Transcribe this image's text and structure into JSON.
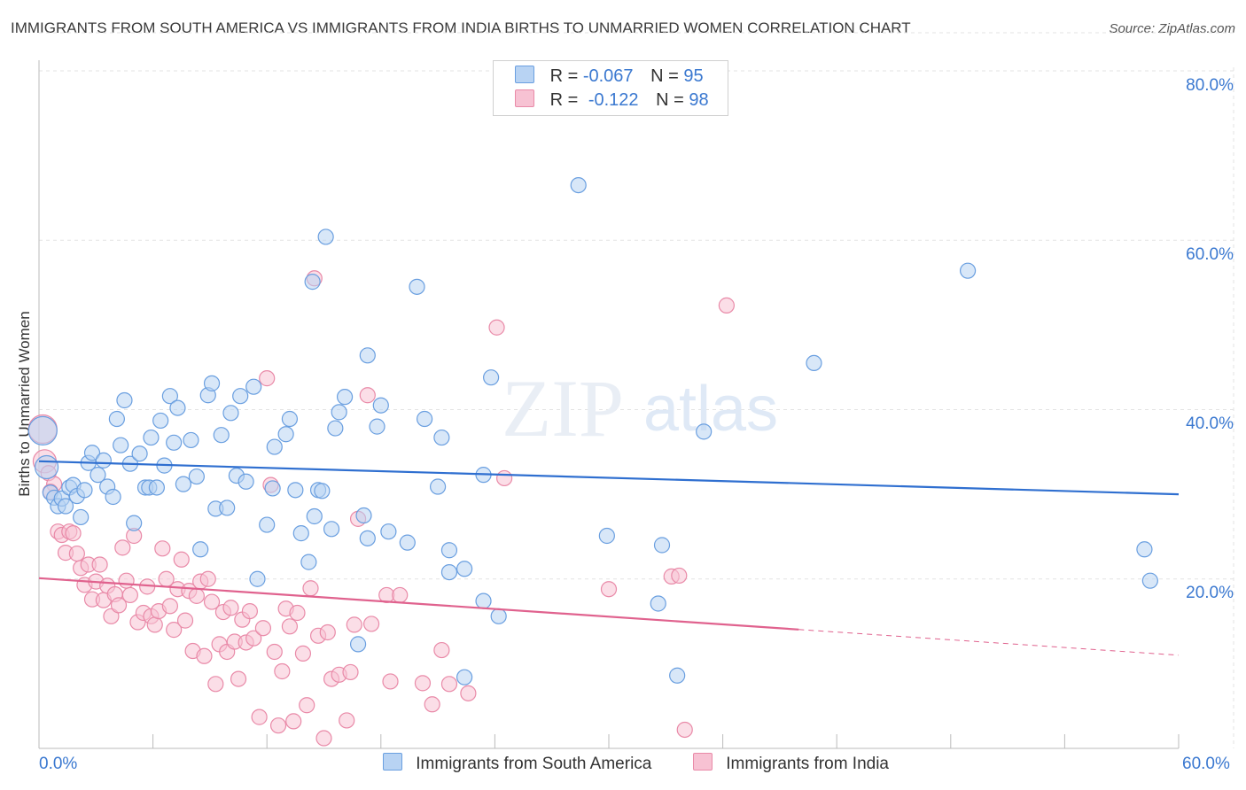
{
  "colors": {
    "blue_fill": "#b8d3f3",
    "blue_stroke": "#6a9fe0",
    "blue_line": "#2f6fd0",
    "pink_fill": "#f7c2d3",
    "pink_stroke": "#e98aa8",
    "pink_line": "#e0628e",
    "grid": "#e3e3e3",
    "axis_text": "#3a78d0"
  },
  "header": {
    "title": "IMMIGRANTS FROM SOUTH AMERICA VS IMMIGRANTS FROM INDIA BIRTHS TO UNMARRIED WOMEN CORRELATION CHART",
    "source": "Source: ZipAtlas.com"
  },
  "watermark": {
    "zip": "ZIP",
    "atlas": "atlas"
  },
  "stats": [
    {
      "r_label": "R =",
      "r_value": "-0.067",
      "n_label": "N =",
      "n_value": "95"
    },
    {
      "r_label": "R =",
      "r_value": "-0.122",
      "n_label": "N =",
      "n_value": "98"
    }
  ],
  "legend": {
    "series_a": "Immigrants from South America",
    "series_b": "Immigrants from India"
  },
  "chart_data": {
    "type": "scatter",
    "title": "IMMIGRANTS FROM SOUTH AMERICA VS IMMIGRANTS FROM INDIA BIRTHS TO UNMARRIED WOMEN CORRELATION CHART",
    "xlabel": "",
    "ylabel": "Births to Unmarried Women",
    "xlim": [
      0,
      60
    ],
    "ylim": [
      0,
      80
    ],
    "x_tick_labels": [
      "0.0%",
      "60.0%"
    ],
    "y_ticks": [
      20,
      40,
      60,
      80
    ],
    "y_tick_labels": [
      "20.0%",
      "40.0%",
      "60.0%",
      "80.0%"
    ],
    "grid": true,
    "series": [
      {
        "name": "Immigrants from South America",
        "color": "blue",
        "r": -0.067,
        "n": 95,
        "trend": {
          "x0": 0,
          "y0": 33.9,
          "x1": 60,
          "y1": 30.0,
          "solid_until": 60
        },
        "points": [
          [
            0.2,
            37.5
          ],
          [
            0.4,
            33.2
          ],
          [
            0.6,
            30.2
          ],
          [
            0.8,
            29.6
          ],
          [
            1.0,
            28.6
          ],
          [
            1.2,
            29.5
          ],
          [
            1.4,
            28.6
          ],
          [
            1.6,
            30.8
          ],
          [
            1.8,
            31.1
          ],
          [
            2.0,
            29.8
          ],
          [
            2.2,
            27.3
          ],
          [
            2.4,
            30.5
          ],
          [
            2.6,
            33.7
          ],
          [
            2.8,
            34.9
          ],
          [
            3.1,
            32.3
          ],
          [
            3.4,
            34.0
          ],
          [
            3.6,
            30.9
          ],
          [
            3.9,
            29.7
          ],
          [
            4.1,
            38.9
          ],
          [
            4.3,
            35.8
          ],
          [
            4.5,
            41.1
          ],
          [
            4.8,
            33.6
          ],
          [
            5.0,
            26.6
          ],
          [
            5.3,
            34.8
          ],
          [
            5.6,
            30.8
          ],
          [
            5.8,
            30.8
          ],
          [
            5.9,
            36.7
          ],
          [
            6.2,
            30.8
          ],
          [
            6.4,
            38.7
          ],
          [
            6.6,
            33.4
          ],
          [
            6.9,
            41.6
          ],
          [
            7.1,
            36.1
          ],
          [
            7.3,
            40.2
          ],
          [
            7.6,
            31.2
          ],
          [
            8.0,
            36.4
          ],
          [
            8.3,
            32.1
          ],
          [
            8.5,
            23.5
          ],
          [
            8.9,
            41.7
          ],
          [
            9.1,
            43.1
          ],
          [
            9.3,
            28.3
          ],
          [
            9.6,
            37.0
          ],
          [
            9.9,
            28.4
          ],
          [
            10.1,
            39.6
          ],
          [
            10.4,
            32.2
          ],
          [
            10.6,
            41.6
          ],
          [
            10.9,
            31.5
          ],
          [
            11.3,
            42.7
          ],
          [
            11.5,
            20.0
          ],
          [
            12.0,
            26.4
          ],
          [
            12.3,
            30.7
          ],
          [
            12.4,
            35.6
          ],
          [
            13.0,
            37.1
          ],
          [
            13.2,
            38.9
          ],
          [
            13.5,
            30.5
          ],
          [
            13.8,
            25.4
          ],
          [
            14.2,
            22.0
          ],
          [
            14.4,
            55.1
          ],
          [
            14.5,
            27.4
          ],
          [
            14.7,
            30.5
          ],
          [
            14.9,
            30.4
          ],
          [
            15.4,
            25.9
          ],
          [
            15.6,
            37.8
          ],
          [
            15.8,
            39.7
          ],
          [
            16.1,
            41.5
          ],
          [
            16.8,
            12.3
          ],
          [
            17.1,
            27.5
          ],
          [
            17.3,
            24.8
          ],
          [
            17.3,
            46.4
          ],
          [
            17.8,
            38.0
          ],
          [
            18.0,
            40.5
          ],
          [
            18.4,
            25.6
          ],
          [
            19.4,
            24.3
          ],
          [
            19.9,
            54.5
          ],
          [
            20.3,
            38.9
          ],
          [
            21.0,
            30.9
          ],
          [
            21.2,
            36.7
          ],
          [
            21.6,
            23.4
          ],
          [
            21.6,
            20.8
          ],
          [
            22.4,
            21.2
          ],
          [
            22.4,
            8.4
          ],
          [
            23.4,
            32.3
          ],
          [
            23.4,
            17.4
          ],
          [
            23.8,
            43.8
          ],
          [
            24.2,
            15.6
          ],
          [
            28.4,
            66.5
          ],
          [
            29.9,
            25.1
          ],
          [
            32.6,
            17.1
          ],
          [
            32.8,
            24.0
          ],
          [
            33.6,
            8.6
          ],
          [
            35.0,
            37.4
          ],
          [
            40.8,
            45.5
          ],
          [
            48.9,
            56.4
          ],
          [
            58.2,
            23.5
          ],
          [
            58.5,
            19.8
          ],
          [
            15.1,
            60.4
          ]
        ]
      },
      {
        "name": "Immigrants from India",
        "color": "pink",
        "r": -0.122,
        "n": 98,
        "trend": {
          "x0": 0,
          "y0": 20.1,
          "x1": 60,
          "y1": 11.0,
          "solid_until": 40
        },
        "points": [
          [
            0.2,
            37.7
          ],
          [
            0.3,
            33.9
          ],
          [
            0.5,
            32.5
          ],
          [
            0.8,
            31.2
          ],
          [
            1.0,
            25.6
          ],
          [
            1.2,
            25.2
          ],
          [
            1.4,
            23.1
          ],
          [
            1.6,
            25.6
          ],
          [
            1.8,
            25.4
          ],
          [
            2.0,
            23.0
          ],
          [
            2.2,
            21.3
          ],
          [
            2.4,
            19.3
          ],
          [
            2.6,
            21.7
          ],
          [
            2.8,
            17.6
          ],
          [
            3.0,
            19.7
          ],
          [
            3.2,
            21.7
          ],
          [
            3.4,
            17.5
          ],
          [
            3.6,
            19.2
          ],
          [
            3.8,
            15.6
          ],
          [
            4.0,
            18.2
          ],
          [
            4.2,
            16.9
          ],
          [
            4.4,
            23.7
          ],
          [
            4.6,
            19.8
          ],
          [
            4.8,
            18.1
          ],
          [
            5.0,
            25.1
          ],
          [
            5.2,
            14.9
          ],
          [
            5.5,
            16.0
          ],
          [
            5.7,
            19.1
          ],
          [
            5.9,
            15.6
          ],
          [
            6.1,
            14.6
          ],
          [
            6.3,
            16.2
          ],
          [
            6.5,
            23.6
          ],
          [
            6.7,
            20.0
          ],
          [
            6.9,
            16.8
          ],
          [
            7.1,
            14.0
          ],
          [
            7.3,
            18.8
          ],
          [
            7.5,
            22.3
          ],
          [
            7.7,
            15.1
          ],
          [
            7.9,
            18.6
          ],
          [
            8.1,
            11.5
          ],
          [
            8.3,
            18.0
          ],
          [
            8.5,
            19.7
          ],
          [
            8.7,
            10.9
          ],
          [
            8.9,
            20.0
          ],
          [
            9.1,
            17.3
          ],
          [
            9.3,
            7.6
          ],
          [
            9.5,
            12.3
          ],
          [
            9.7,
            16.1
          ],
          [
            9.9,
            11.4
          ],
          [
            10.1,
            16.6
          ],
          [
            10.3,
            12.6
          ],
          [
            10.5,
            8.2
          ],
          [
            10.7,
            15.2
          ],
          [
            10.9,
            12.5
          ],
          [
            11.1,
            16.2
          ],
          [
            11.3,
            13.0
          ],
          [
            11.6,
            3.7
          ],
          [
            11.8,
            14.2
          ],
          [
            12.0,
            43.7
          ],
          [
            12.2,
            31.1
          ],
          [
            12.4,
            11.4
          ],
          [
            12.6,
            2.7
          ],
          [
            12.8,
            9.1
          ],
          [
            13.0,
            16.5
          ],
          [
            13.2,
            14.4
          ],
          [
            13.4,
            3.2
          ],
          [
            13.6,
            16.0
          ],
          [
            13.9,
            11.2
          ],
          [
            14.1,
            5.1
          ],
          [
            14.3,
            18.9
          ],
          [
            14.5,
            55.5
          ],
          [
            14.7,
            13.3
          ],
          [
            15.0,
            1.2
          ],
          [
            15.2,
            13.7
          ],
          [
            15.4,
            8.2
          ],
          [
            15.8,
            8.7
          ],
          [
            16.2,
            3.3
          ],
          [
            16.4,
            9.0
          ],
          [
            16.6,
            14.6
          ],
          [
            16.8,
            27.1
          ],
          [
            17.3,
            41.7
          ],
          [
            17.5,
            14.7
          ],
          [
            18.3,
            18.1
          ],
          [
            18.5,
            7.9
          ],
          [
            19.0,
            18.1
          ],
          [
            20.2,
            7.7
          ],
          [
            20.7,
            5.2
          ],
          [
            21.2,
            11.6
          ],
          [
            21.6,
            7.6
          ],
          [
            22.6,
            6.5
          ],
          [
            24.1,
            49.7
          ],
          [
            24.5,
            31.9
          ],
          [
            30.0,
            18.8
          ],
          [
            33.3,
            20.3
          ],
          [
            33.7,
            20.4
          ],
          [
            34.0,
            2.2
          ],
          [
            36.2,
            52.3
          ],
          [
            0.6,
            30.3
          ]
        ]
      }
    ]
  }
}
